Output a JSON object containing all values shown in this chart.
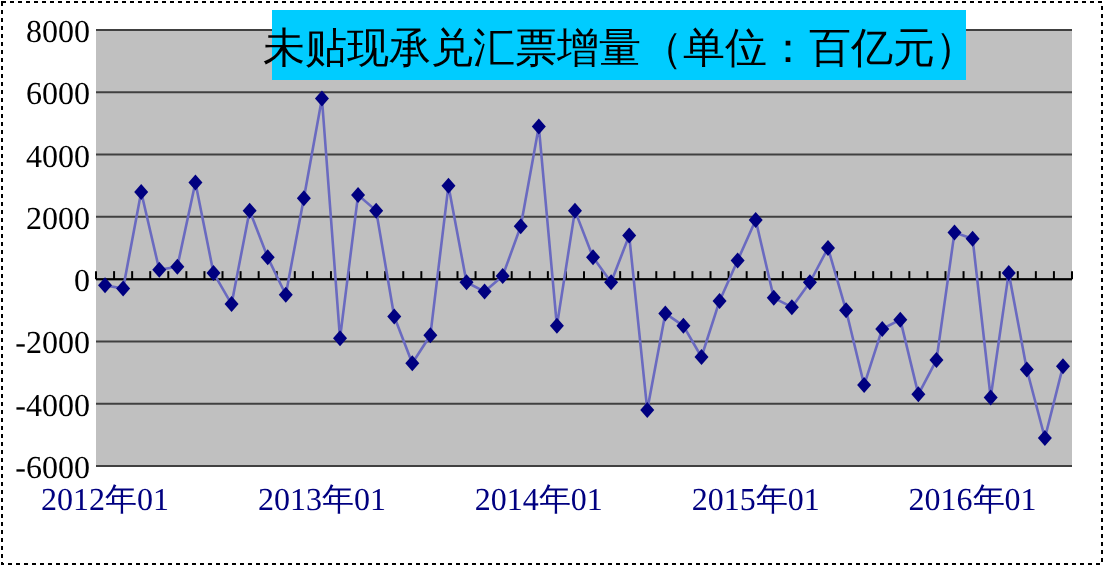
{
  "chart_data": {
    "type": "line",
    "title": "未贴现承兑汇票增量（单位：百亿元）",
    "categories": [
      "2012年01",
      null,
      null,
      null,
      null,
      null,
      null,
      null,
      null,
      null,
      null,
      null,
      "2013年01",
      null,
      null,
      null,
      null,
      null,
      null,
      null,
      null,
      null,
      null,
      null,
      "2014年01",
      null,
      null,
      null,
      null,
      null,
      null,
      null,
      null,
      null,
      null,
      null,
      "2015年01",
      null,
      null,
      null,
      null,
      null,
      null,
      null,
      null,
      null,
      null,
      null,
      "2016年01",
      null,
      null,
      null,
      null,
      null
    ],
    "series": [
      {
        "color": "#000080",
        "values": [
          -200,
          -300,
          2800,
          300,
          400,
          3100,
          200,
          -800,
          2200,
          700,
          -500,
          2600,
          5800,
          -1900,
          2700,
          2200,
          -1200,
          -2700,
          -1800,
          3000,
          -100,
          -400,
          100,
          1700,
          4900,
          -1500,
          2200,
          700,
          -100,
          1400,
          -4200,
          -1100,
          -1500,
          -2500,
          -700,
          600,
          1900,
          -600,
          -900,
          -100,
          1000,
          -1000,
          -3400,
          -1600,
          -1300,
          -3700,
          -2600,
          1500,
          1300,
          -3800,
          200,
          -2900,
          -5100,
          -2800
        ]
      }
    ],
    "ylim": [
      -6000,
      8000
    ],
    "yticks": [
      -6000,
      -4000,
      -2000,
      0,
      2000,
      4000,
      6000,
      8000
    ],
    "grid": "y",
    "marker": "diamond",
    "line_style": "solid"
  }
}
